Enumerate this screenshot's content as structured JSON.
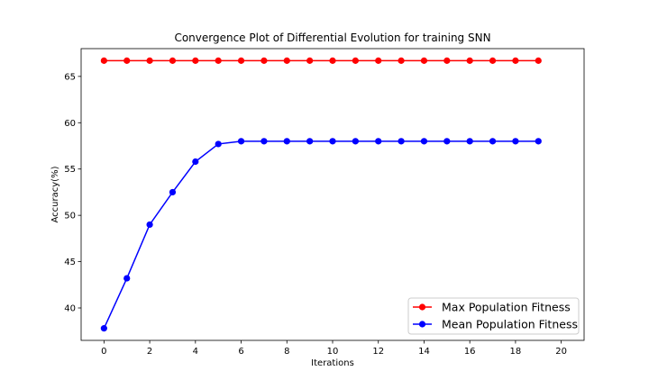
{
  "chart_data": {
    "type": "line",
    "title": "Convergence Plot of Differential Evolution for training SNN",
    "xlabel": "Iterations",
    "ylabel": "Accuracy(%)",
    "xlim": [
      -1,
      21
    ],
    "ylim": [
      36.5,
      68.0
    ],
    "xticks": [
      "0",
      "2",
      "4",
      "6",
      "8",
      "10",
      "12",
      "14",
      "16",
      "18",
      "20"
    ],
    "yticks": [
      "40",
      "45",
      "50",
      "55",
      "60",
      "65"
    ],
    "grid": false,
    "legend_position": "bottom-right",
    "x": [
      0,
      1,
      2,
      3,
      4,
      5,
      6,
      7,
      8,
      9,
      10,
      11,
      12,
      13,
      14,
      15,
      16,
      17,
      18,
      19
    ],
    "series": [
      {
        "name": "Max Population Fitness",
        "color": "#ff0000",
        "marker": "circle",
        "values": [
          66.7,
          66.7,
          66.7,
          66.7,
          66.7,
          66.7,
          66.7,
          66.7,
          66.7,
          66.7,
          66.7,
          66.7,
          66.7,
          66.7,
          66.7,
          66.7,
          66.7,
          66.7,
          66.7,
          66.7
        ]
      },
      {
        "name": "Mean Population Fitness",
        "color": "#0000ff",
        "marker": "circle",
        "values": [
          37.8,
          43.2,
          49.0,
          52.5,
          55.8,
          57.7,
          58.0,
          58.0,
          58.0,
          58.0,
          58.0,
          58.0,
          58.0,
          58.0,
          58.0,
          58.0,
          58.0,
          58.0,
          58.0,
          58.0
        ]
      }
    ]
  }
}
